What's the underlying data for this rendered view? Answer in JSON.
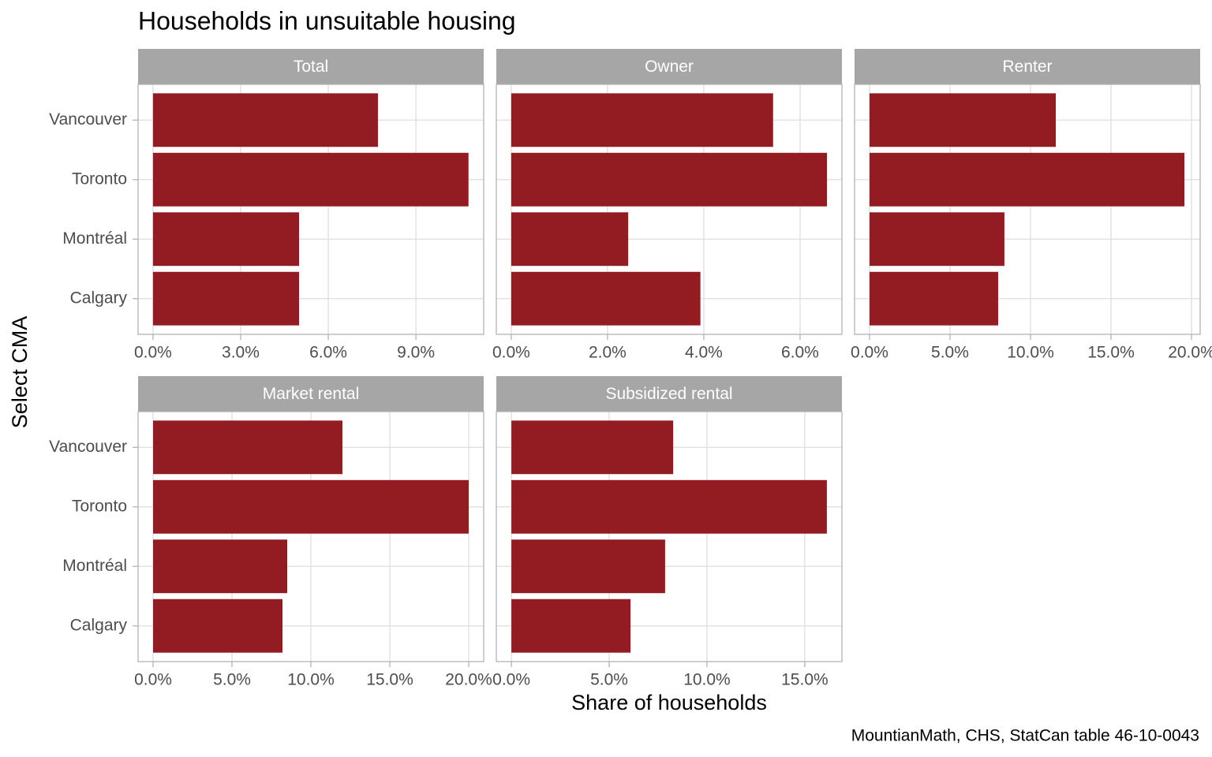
{
  "title": "Households in unsuitable housing",
  "x_label": "Share of households",
  "y_label": "Select CMA",
  "caption": "MountianMath, CHS, StatCan table 46-10-0043",
  "categories": [
    "Vancouver",
    "Toronto",
    "Montréal",
    "Calgary"
  ],
  "chart_data": [
    {
      "type": "bar",
      "orientation": "horizontal",
      "title": "Total",
      "color": "#931c23",
      "grid": true,
      "values": [
        7.7,
        10.8,
        5.0,
        5.0
      ],
      "xlim": [
        -0.51,
        11.32
      ],
      "xticks": [
        {
          "value": 0,
          "label": "0.0%"
        },
        {
          "value": 3,
          "label": "3.0%"
        },
        {
          "value": 6,
          "label": "6.0%"
        },
        {
          "value": 9,
          "label": "9.0%"
        }
      ]
    },
    {
      "type": "bar",
      "orientation": "horizontal",
      "title": "Owner",
      "color": "#931c23",
      "grid": true,
      "values": [
        5.44,
        6.56,
        2.43,
        3.93
      ],
      "xlim": [
        -0.31,
        6.87
      ],
      "xticks": [
        {
          "value": 0,
          "label": "0.0%"
        },
        {
          "value": 2,
          "label": "2.0%"
        },
        {
          "value": 4,
          "label": "4.0%"
        },
        {
          "value": 6,
          "label": "6.0%"
        }
      ]
    },
    {
      "type": "bar",
      "orientation": "horizontal",
      "title": "Renter",
      "color": "#931c23",
      "grid": true,
      "values": [
        11.57,
        19.56,
        8.38,
        7.99
      ],
      "xlim": [
        -0.93,
        20.54
      ],
      "xticks": [
        {
          "value": 0,
          "label": "0.0%"
        },
        {
          "value": 5,
          "label": "5.0%"
        },
        {
          "value": 10,
          "label": "10.0%"
        },
        {
          "value": 15,
          "label": "15.0%"
        },
        {
          "value": 20,
          "label": "20.0%"
        }
      ]
    },
    {
      "type": "bar",
      "orientation": "horizontal",
      "title": "Market rental",
      "color": "#931c23",
      "grid": true,
      "values": [
        12.0,
        20.0,
        8.5,
        8.2
      ],
      "xlim": [
        -0.95,
        20.95
      ],
      "xticks": [
        {
          "value": 0,
          "label": "0.0%"
        },
        {
          "value": 5,
          "label": "5.0%"
        },
        {
          "value": 10,
          "label": "10.0%"
        },
        {
          "value": 15,
          "label": "15.0%"
        },
        {
          "value": 20,
          "label": "20.0%"
        }
      ]
    },
    {
      "type": "bar",
      "orientation": "horizontal",
      "title": "Subsidized rental",
      "color": "#931c23",
      "grid": true,
      "values": [
        8.27,
        16.13,
        7.86,
        6.09
      ],
      "xlim": [
        -0.77,
        16.9
      ],
      "xticks": [
        {
          "value": 0,
          "label": "0.0%"
        },
        {
          "value": 5,
          "label": "5.0%"
        },
        {
          "value": 10,
          "label": "10.0%"
        },
        {
          "value": 15,
          "label": "15.0%"
        }
      ]
    }
  ]
}
